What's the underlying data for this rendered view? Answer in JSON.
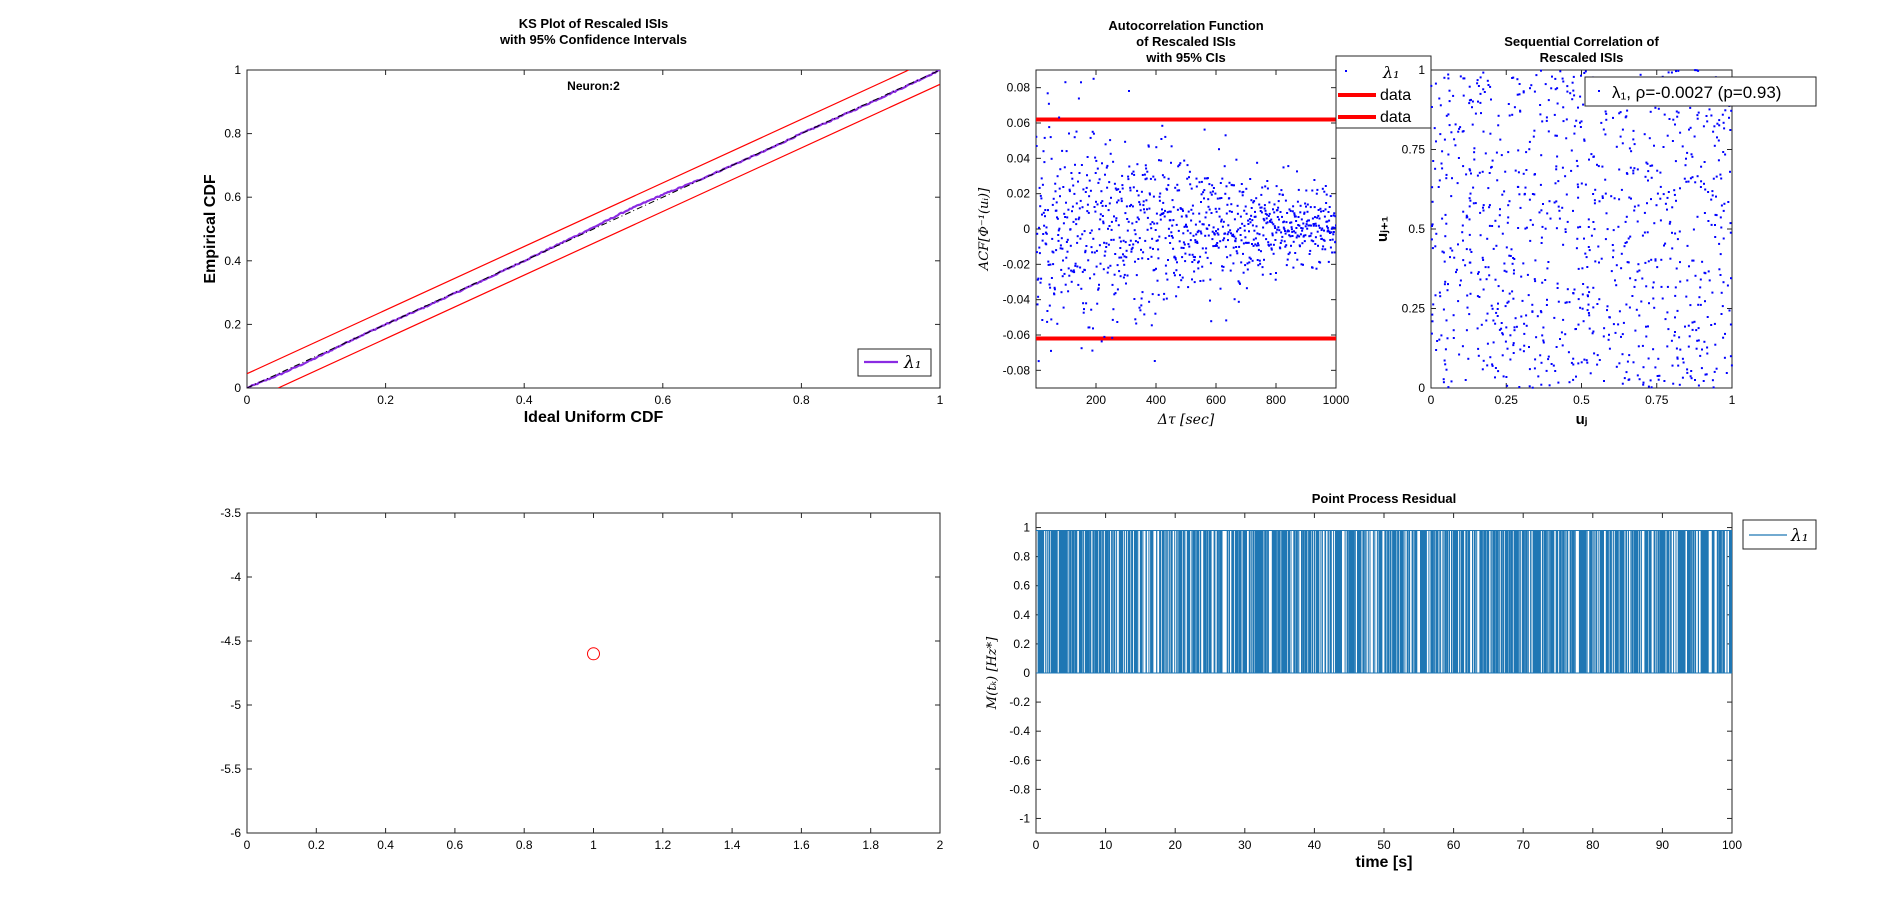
{
  "figure": {
    "background": "#ffffff",
    "colors": {
      "purple": "#8a2be2",
      "red": "#ff0000",
      "blue": "#0000ff",
      "steel_blue": "#1f77b4"
    }
  },
  "chart_data": [
    {
      "id": "ks",
      "type": "line",
      "title": [
        "KS Plot of Rescaled ISIs",
        "with 95% Confidence Intervals"
      ],
      "annotation": "Neuron:2",
      "xlabel": "Ideal Uniform CDF",
      "ylabel": "Empirical CDF",
      "xlim": [
        0,
        1
      ],
      "ylim": [
        0,
        1
      ],
      "xticks": [
        0,
        0.2,
        0.4,
        0.6,
        0.8,
        1
      ],
      "xtick_labels": [
        "0",
        "0.2",
        "0.4",
        "0.6",
        "0.8",
        "1"
      ],
      "yticks": [
        0,
        0.2,
        0.4,
        0.6,
        0.8,
        1
      ],
      "ytick_labels": [
        "0",
        "0.2",
        "0.4",
        "0.6",
        "0.8",
        "1"
      ],
      "legend": {
        "label": "λ₁",
        "location": "bottom-right"
      },
      "series": [
        {
          "name": "λ1",
          "color": "#8a2be2",
          "x": [
            0,
            0.05,
            0.1,
            0.15,
            0.2,
            0.25,
            0.3,
            0.35,
            0.4,
            0.45,
            0.5,
            0.55,
            0.6,
            0.65,
            0.7,
            0.75,
            0.8,
            0.85,
            0.9,
            0.95,
            1
          ],
          "y": [
            0,
            0.045,
            0.095,
            0.15,
            0.2,
            0.248,
            0.298,
            0.348,
            0.4,
            0.452,
            0.505,
            0.56,
            0.608,
            0.652,
            0.7,
            0.748,
            0.8,
            0.848,
            0.898,
            0.948,
            1
          ]
        },
        {
          "name": "upper 95% CI",
          "color": "#ff0000",
          "x": [
            0,
            0.955
          ],
          "y": [
            0.045,
            1
          ]
        },
        {
          "name": "lower 95% CI",
          "color": "#ff0000",
          "x": [
            0.045,
            1
          ],
          "y": [
            0,
            0.955
          ]
        },
        {
          "name": "ideal",
          "color": "#000000",
          "x": [
            0,
            1
          ],
          "y": [
            0,
            1
          ]
        }
      ]
    },
    {
      "id": "acf",
      "type": "scatter",
      "title": [
        "Autocorrelation Function",
        "of Rescaled ISIs",
        "with 95% CIs"
      ],
      "xlabel": "Δτ [sec]",
      "ylabel": "ACF[Φ⁻¹(uᵢ)]",
      "xlim": [
        0,
        1000
      ],
      "ylim": [
        -0.09,
        0.09
      ],
      "xticks": [
        200,
        400,
        600,
        800,
        1000
      ],
      "xtick_labels": [
        "200",
        "400",
        "600",
        "800",
        "1000"
      ],
      "yticks": [
        -0.08,
        -0.06,
        -0.04,
        -0.02,
        0,
        0.02,
        0.04,
        0.06,
        0.08
      ],
      "ytick_labels": [
        "-0.08",
        "-0.06",
        "-0.04",
        "-0.02",
        "0",
        "0.02",
        "0.04",
        "0.06",
        "0.08"
      ],
      "confidence_bounds": [
        0.062,
        -0.062
      ],
      "n_points": 1000,
      "amplitude_start": 0.05,
      "amplitude_end": 0.015,
      "legend": {
        "entries": [
          "λ₁",
          "data",
          "data"
        ],
        "location": "outside top-right"
      }
    },
    {
      "id": "seq",
      "type": "scatter",
      "title": [
        "Sequential Correlation of",
        "Rescaled ISIs"
      ],
      "xlabel": "uⱼ",
      "ylabel": "uⱼ₊₁",
      "xlim": [
        0,
        1
      ],
      "ylim": [
        0,
        1
      ],
      "xticks": [
        0,
        0.25,
        0.5,
        0.75,
        1
      ],
      "xtick_labels": [
        "0",
        "0.25",
        "0.5",
        "0.75",
        "1"
      ],
      "yticks": [
        0,
        0.25,
        0.5,
        0.75,
        1
      ],
      "ytick_labels": [
        "0",
        "0.25",
        "0.5",
        "0.75",
        "1"
      ],
      "n_points": 1000,
      "rho": -0.0027,
      "p": 0.93,
      "legend": {
        "label": "λ₁, ρ=-0.0027 (p=0.93)",
        "location": "top-right"
      }
    },
    {
      "id": "coeff",
      "type": "scatter",
      "title": "",
      "xlim": [
        0,
        2
      ],
      "ylim": [
        -6,
        -3.5
      ],
      "xticks": [
        0,
        0.2,
        0.4,
        0.6,
        0.8,
        1,
        1.2,
        1.4,
        1.6,
        1.8,
        2
      ],
      "xtick_labels": [
        "0",
        "0.2",
        "0.4",
        "0.6",
        "0.8",
        "1",
        "1.2",
        "1.4",
        "1.6",
        "1.8",
        "2"
      ],
      "yticks": [
        -6,
        -5.5,
        -5,
        -4.5,
        -4,
        -3.5
      ],
      "ytick_labels": [
        "-6",
        "-5.5",
        "-5",
        "-4.5",
        "-4",
        "-3.5"
      ],
      "points": [
        {
          "x": 1,
          "y": -4.6,
          "color": "#ff0000",
          "marker": "circle"
        }
      ]
    },
    {
      "id": "resid",
      "type": "line",
      "title": "Point Process Residual",
      "xlabel": "time [s]",
      "ylabel": "M(tₖ) [Hz*]",
      "xlim": [
        0,
        100
      ],
      "ylim": [
        -1.1,
        1.1
      ],
      "xticks": [
        0,
        10,
        20,
        30,
        40,
        50,
        60,
        70,
        80,
        90,
        100
      ],
      "xtick_labels": [
        "0",
        "10",
        "20",
        "30",
        "40",
        "50",
        "60",
        "70",
        "80",
        "90",
        "100"
      ],
      "yticks": [
        -1,
        -0.8,
        -0.6,
        -0.4,
        -0.2,
        0,
        0.2,
        0.4,
        0.6,
        0.8,
        1
      ],
      "ytick_labels": [
        "-1",
        "-0.8",
        "-0.6",
        "-0.4",
        "-0.2",
        "0",
        "0.2",
        "0.4",
        "0.6",
        "0.8",
        "1"
      ],
      "level_high": 0.98,
      "level_low": 0,
      "n_spikes": 900,
      "legend": {
        "label": "λ₁",
        "location": "outside top-right"
      }
    }
  ]
}
